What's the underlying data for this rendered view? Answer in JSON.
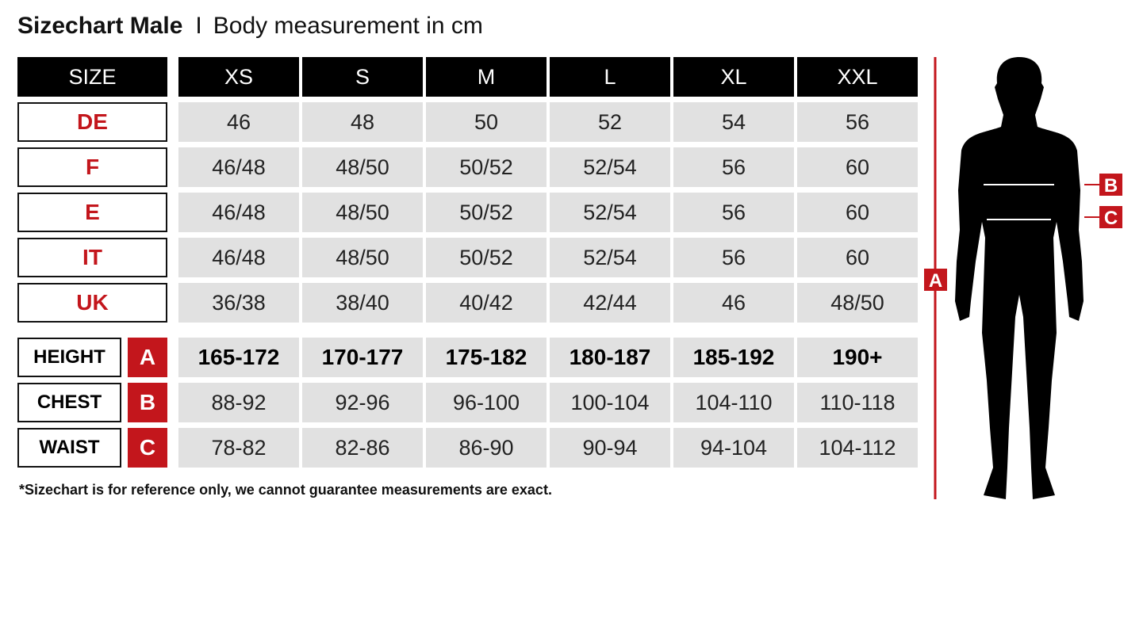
{
  "title": {
    "bold": "Sizechart Male",
    "separator": "I",
    "subtitle": "Body measurement in cm"
  },
  "header": {
    "label": "SIZE",
    "sizes": [
      "XS",
      "S",
      "M",
      "L",
      "XL",
      "XXL"
    ]
  },
  "size_rows": [
    {
      "label": "DE",
      "values": [
        "46",
        "48",
        "50",
        "52",
        "54",
        "56"
      ]
    },
    {
      "label": "F",
      "values": [
        "46/48",
        "48/50",
        "50/52",
        "52/54",
        "56",
        "60"
      ]
    },
    {
      "label": "E",
      "values": [
        "46/48",
        "48/50",
        "50/52",
        "52/54",
        "56",
        "60"
      ]
    },
    {
      "label": "IT",
      "values": [
        "46/48",
        "48/50",
        "50/52",
        "52/54",
        "56",
        "60"
      ]
    },
    {
      "label": "UK",
      "values": [
        "36/38",
        "38/40",
        "40/42",
        "42/44",
        "46",
        "48/50"
      ]
    }
  ],
  "measurement_rows": [
    {
      "label": "HEIGHT",
      "letter": "A",
      "values": [
        "165-172",
        "170-177",
        "175-182",
        "180-187",
        "185-192",
        "190+"
      ]
    },
    {
      "label": "CHEST",
      "letter": "B",
      "values": [
        "88-92",
        "92-96",
        "96-100",
        "100-104",
        "104-110",
        "110-118"
      ]
    },
    {
      "label": "WAIST",
      "letter": "C",
      "values": [
        "78-82",
        "82-86",
        "86-90",
        "90-94",
        "94-104",
        "104-112"
      ]
    }
  ],
  "footnote": "*Sizechart is for reference only, we cannot guarantee measurements are exact.",
  "figure": {
    "markers": [
      "A",
      "B",
      "C"
    ]
  },
  "colors": {
    "accent": "#c3161c",
    "header_bg": "#000000",
    "cell_bg": "#e1e1e1"
  }
}
